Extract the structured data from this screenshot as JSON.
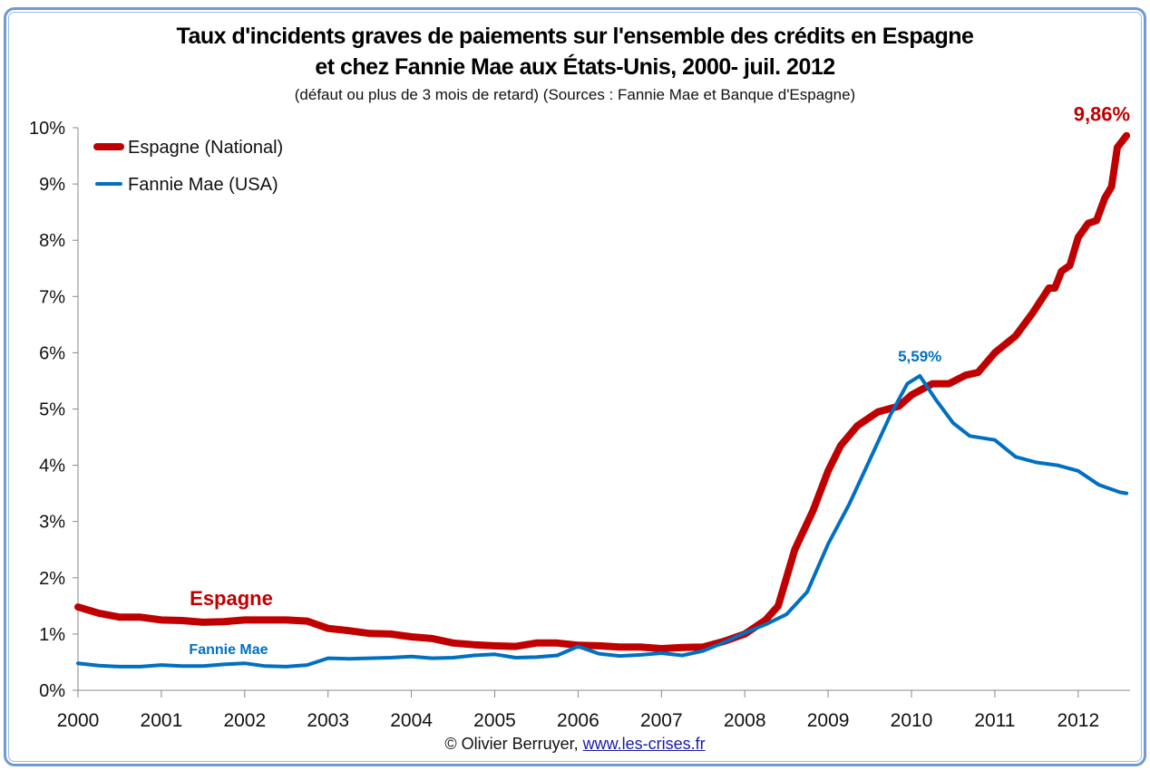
{
  "chart_data": {
    "type": "line",
    "title": "Taux d'incidents graves de paiements sur l'ensemble des crédits en Espagne",
    "title_line2": "et chez Fannie Mae aux États-Unis, 2000- juil. 2012",
    "subtitle": "(défaut ou plus de 3 mois de retard) (Sources : Fannie Mae et Banque d'Espagne)",
    "xlim": [
      2000,
      2012.58
    ],
    "ylim": [
      0,
      10
    ],
    "x_ticks": [
      "2000",
      "2001",
      "2002",
      "2003",
      "2004",
      "2005",
      "2006",
      "2007",
      "2008",
      "2009",
      "2010",
      "2011",
      "2012"
    ],
    "y_ticks": [
      "0%",
      "1%",
      "2%",
      "3%",
      "4%",
      "5%",
      "6%",
      "7%",
      "8%",
      "9%",
      "10%"
    ],
    "grid": false,
    "legend_placement": "top-left",
    "series": [
      {
        "name": "Espagne (National)",
        "color": "#c00000",
        "inline_label": "Espagne",
        "end_label": "9,86%",
        "x": [
          2000,
          2000.25,
          2000.5,
          2000.75,
          2001,
          2001.25,
          2001.5,
          2001.75,
          2002,
          2002.25,
          2002.5,
          2002.75,
          2003,
          2003.25,
          2003.5,
          2003.75,
          2004,
          2004.25,
          2004.5,
          2004.75,
          2005,
          2005.25,
          2005.5,
          2005.75,
          2006,
          2006.25,
          2006.5,
          2006.75,
          2007,
          2007.25,
          2007.5,
          2007.75,
          2008,
          2008.25,
          2008.4,
          2008.6,
          2008.82,
          2009,
          2009.15,
          2009.35,
          2009.6,
          2009.85,
          2010,
          2010.25,
          2010.45,
          2010.65,
          2010.8,
          2011,
          2011.25,
          2011.45,
          2011.65,
          2011.72,
          2011.8,
          2011.9,
          2012,
          2012.12,
          2012.22,
          2012.32,
          2012.4,
          2012.47,
          2012.58
        ],
        "y": [
          1.48,
          1.37,
          1.3,
          1.3,
          1.25,
          1.24,
          1.21,
          1.22,
          1.25,
          1.25,
          1.25,
          1.23,
          1.1,
          1.06,
          1.01,
          1.0,
          0.95,
          0.92,
          0.84,
          0.81,
          0.79,
          0.78,
          0.84,
          0.84,
          0.8,
          0.79,
          0.77,
          0.77,
          0.74,
          0.76,
          0.77,
          0.87,
          1.0,
          1.25,
          1.5,
          2.5,
          3.2,
          3.9,
          4.35,
          4.7,
          4.95,
          5.05,
          5.25,
          5.45,
          5.45,
          5.6,
          5.65,
          6.0,
          6.3,
          6.7,
          7.15,
          7.15,
          7.45,
          7.55,
          8.05,
          8.3,
          8.35,
          8.75,
          8.95,
          9.65,
          9.86
        ]
      },
      {
        "name": "Fannie Mae (USA)",
        "color": "#0070c0",
        "inline_label": "Fannie Mae",
        "peak_label": "5,59%",
        "x": [
          2000,
          2000.25,
          2000.5,
          2000.75,
          2001,
          2001.25,
          2001.5,
          2001.75,
          2002,
          2002.25,
          2002.5,
          2002.75,
          2003,
          2003.25,
          2003.5,
          2003.75,
          2004,
          2004.25,
          2004.5,
          2004.75,
          2005,
          2005.25,
          2005.5,
          2005.75,
          2006,
          2006.25,
          2006.5,
          2006.75,
          2007,
          2007.25,
          2007.5,
          2007.75,
          2008,
          2008.25,
          2008.5,
          2008.75,
          2009,
          2009.25,
          2009.5,
          2009.75,
          2009.95,
          2010.1,
          2010.3,
          2010.5,
          2010.7,
          2011,
          2011.25,
          2011.5,
          2011.75,
          2012,
          2012.25,
          2012.5,
          2012.58
        ],
        "y": [
          0.48,
          0.44,
          0.42,
          0.42,
          0.45,
          0.43,
          0.43,
          0.46,
          0.48,
          0.43,
          0.42,
          0.45,
          0.57,
          0.56,
          0.57,
          0.58,
          0.6,
          0.57,
          0.58,
          0.62,
          0.64,
          0.58,
          0.59,
          0.62,
          0.78,
          0.65,
          0.61,
          0.63,
          0.66,
          0.62,
          0.7,
          0.85,
          1.02,
          1.17,
          1.35,
          1.75,
          2.6,
          3.3,
          4.1,
          4.9,
          5.45,
          5.59,
          5.15,
          4.75,
          4.52,
          4.45,
          4.15,
          4.05,
          4.0,
          3.9,
          3.65,
          3.52,
          3.5
        ]
      }
    ]
  },
  "credit": {
    "text": "© Olivier Berruyer,",
    "link": "www.les-crises.fr"
  }
}
